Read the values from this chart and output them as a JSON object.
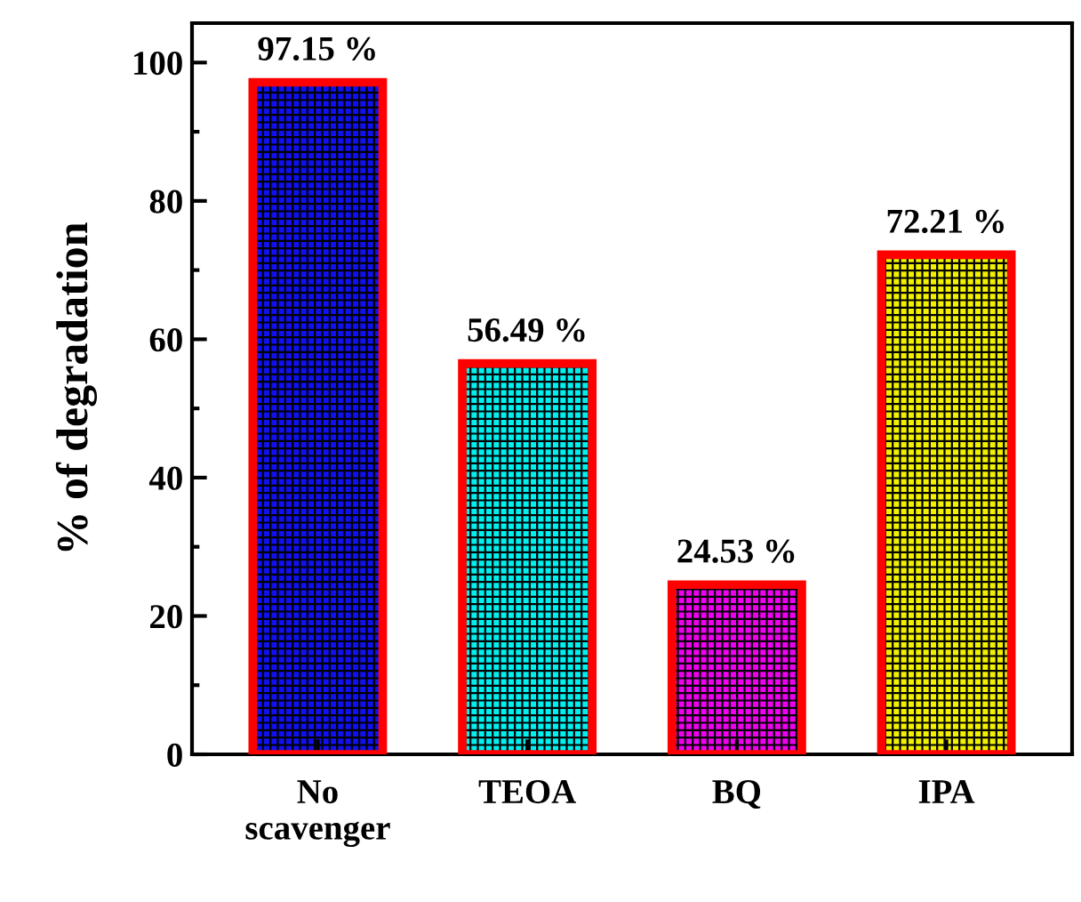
{
  "chart_data": {
    "type": "bar",
    "ylabel": "% of degradation",
    "categories": [
      "No\nscavenger",
      "TEOA",
      "BQ",
      "IPA"
    ],
    "values": [
      97.15,
      56.49,
      24.53,
      72.21
    ],
    "colors": [
      "#1010f0",
      "#00f0f0",
      "#f000f0",
      "#f0f000"
    ],
    "value_labels": [
      "97.15 %",
      "56.49 %",
      "24.53 %",
      "72.21 %"
    ],
    "ylim": [
      0,
      105.7
    ],
    "yticks": [
      0,
      20,
      40,
      60,
      80,
      100
    ],
    "grid": false
  }
}
